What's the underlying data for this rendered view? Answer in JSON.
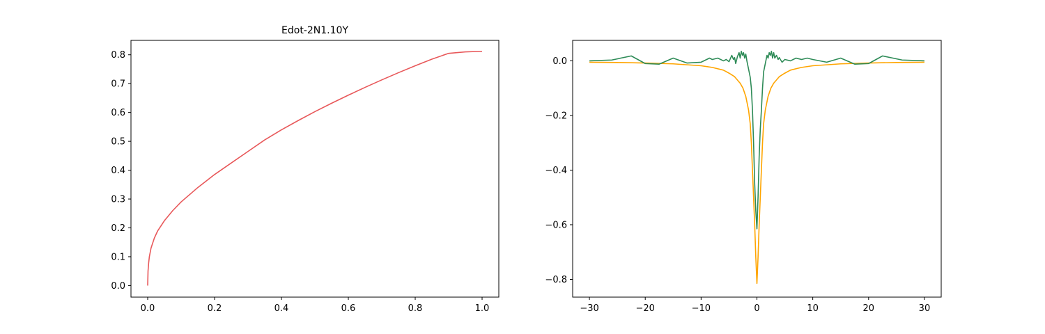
{
  "chart_data": [
    {
      "type": "line",
      "title": "Edot-2N1.10Y",
      "xlabel": "",
      "ylabel": "",
      "xlim": [
        -0.05,
        1.05
      ],
      "ylim": [
        -0.04,
        0.85
      ],
      "xticks": [
        0.0,
        0.2,
        0.4,
        0.6,
        0.8,
        1.0
      ],
      "xtick_labels": [
        "0.0",
        "0.2",
        "0.4",
        "0.6",
        "0.8",
        "1.0"
      ],
      "yticks": [
        0.0,
        0.1,
        0.2,
        0.3,
        0.4,
        0.5,
        0.6,
        0.7,
        0.8
      ],
      "ytick_labels": [
        "0.0",
        "0.1",
        "0.2",
        "0.3",
        "0.4",
        "0.5",
        "0.6",
        "0.7",
        "0.8"
      ],
      "grid": false,
      "series": [
        {
          "color": "#e8585a",
          "x": [
            0.0,
            0.001,
            0.003,
            0.005,
            0.01,
            0.02,
            0.03,
            0.05,
            0.075,
            0.1,
            0.15,
            0.2,
            0.25,
            0.3,
            0.35,
            0.4,
            0.45,
            0.5,
            0.55,
            0.6,
            0.65,
            0.7,
            0.75,
            0.8,
            0.85,
            0.9,
            0.95,
            1.0
          ],
          "y": [
            0.0,
            0.05,
            0.08,
            0.1,
            0.13,
            0.165,
            0.19,
            0.225,
            0.26,
            0.29,
            0.34,
            0.385,
            0.425,
            0.465,
            0.505,
            0.54,
            0.572,
            0.603,
            0.632,
            0.66,
            0.687,
            0.713,
            0.738,
            0.762,
            0.785,
            0.805,
            0.81,
            0.812
          ]
        }
      ]
    },
    {
      "type": "line",
      "title": "",
      "xlabel": "",
      "ylabel": "",
      "xlim": [
        -33,
        33
      ],
      "ylim": [
        -0.865,
        0.075
      ],
      "xticks": [
        -30,
        -20,
        -10,
        0,
        10,
        20,
        30
      ],
      "xtick_labels": [
        "−30",
        "−20",
        "−10",
        "0",
        "10",
        "20",
        "30"
      ],
      "yticks": [
        0.0,
        -0.2,
        -0.4,
        -0.6,
        -0.8
      ],
      "ytick_labels": [
        "0.0",
        "−0.2",
        "−0.4",
        "−0.6",
        "−0.8"
      ],
      "grid": false,
      "series": [
        {
          "color": "#ffa500",
          "x": [
            -30,
            -25,
            -20,
            -15,
            -10,
            -8,
            -6,
            -5,
            -4,
            -3,
            -2.5,
            -2,
            -1.5,
            -1.2,
            -1,
            -0.8,
            -0.6,
            -0.4,
            -0.2,
            0,
            0.2,
            0.4,
            0.6,
            0.8,
            1,
            1.2,
            1.5,
            2,
            2.5,
            3,
            4,
            5,
            6,
            8,
            10,
            15,
            20,
            25,
            30
          ],
          "y": [
            -0.005,
            -0.006,
            -0.008,
            -0.011,
            -0.018,
            -0.024,
            -0.034,
            -0.045,
            -0.058,
            -0.082,
            -0.1,
            -0.13,
            -0.18,
            -0.23,
            -0.3,
            -0.4,
            -0.5,
            -0.6,
            -0.72,
            -0.815,
            -0.72,
            -0.6,
            -0.5,
            -0.4,
            -0.3,
            -0.23,
            -0.18,
            -0.13,
            -0.1,
            -0.082,
            -0.058,
            -0.045,
            -0.034,
            -0.024,
            -0.018,
            -0.011,
            -0.008,
            -0.006,
            -0.005
          ]
        },
        {
          "color": "#2e8b57",
          "x": [
            -30,
            -26,
            -22.5,
            -20,
            -17.5,
            -15,
            -12.5,
            -10,
            -9,
            -8.5,
            -8,
            -7,
            -6,
            -5.5,
            -5,
            -4.5,
            -4.2,
            -4,
            -3.8,
            -3.5,
            -3.2,
            -3,
            -2.8,
            -2.6,
            -2.4,
            -2.2,
            -2,
            -1.8,
            -1.6,
            -1.4,
            -1.2,
            -1,
            -0.8,
            -0.6,
            -0.4,
            -0.2,
            0,
            0.2,
            0.4,
            0.6,
            0.8,
            1,
            1.2,
            1.4,
            1.6,
            1.8,
            2,
            2.2,
            2.4,
            2.6,
            2.8,
            3,
            3.2,
            3.5,
            3.8,
            4,
            4.5,
            5,
            6,
            7,
            8,
            9,
            10,
            12.5,
            15,
            17.5,
            20,
            22.5,
            26,
            30
          ],
          "y": [
            0.0,
            0.003,
            0.018,
            -0.01,
            -0.012,
            0.01,
            -0.008,
            -0.005,
            0.005,
            0.01,
            0.005,
            0.01,
            0.0,
            0.005,
            -0.003,
            0.02,
            0.005,
            0.012,
            -0.01,
            0.015,
            0.03,
            0.01,
            0.035,
            0.02,
            0.03,
            0.01,
            0.025,
            0.0,
            -0.02,
            -0.04,
            -0.06,
            -0.1,
            -0.18,
            -0.3,
            -0.45,
            -0.55,
            -0.615,
            -0.5,
            -0.35,
            -0.25,
            -0.18,
            -0.1,
            -0.04,
            -0.02,
            0.0,
            0.02,
            0.01,
            0.03,
            0.02,
            0.035,
            0.01,
            0.03,
            0.01,
            0.02,
            0.005,
            0.012,
            -0.005,
            0.005,
            0.0,
            0.01,
            0.005,
            0.01,
            0.005,
            -0.005,
            0.01,
            -0.012,
            -0.01,
            0.018,
            0.003,
            0.0
          ]
        }
      ]
    }
  ]
}
